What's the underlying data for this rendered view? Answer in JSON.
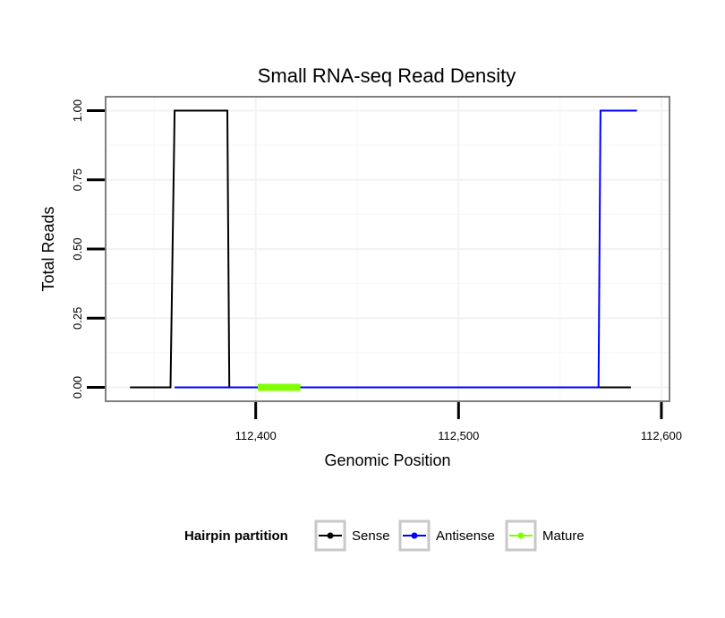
{
  "chart_data": {
    "type": "line",
    "title": "Small RNA-seq Read Density",
    "xlabel": "Genomic Position",
    "ylabel": "Total Reads",
    "xlim": [
      112326,
      112604
    ],
    "ylim": [
      -0.05,
      1.05
    ],
    "x_ticks": [
      112400,
      112500,
      112600
    ],
    "x_tick_labels": [
      "112,400",
      "112,500",
      "112,600"
    ],
    "y_ticks": [
      0,
      0.25,
      0.5,
      0.75,
      1.0
    ],
    "y_tick_labels": [
      "0.00",
      "0.25",
      "0.50",
      "0.75",
      "1.00"
    ],
    "grid": true,
    "series": [
      {
        "name": "Sense",
        "color": "#000000",
        "x": [
          112338,
          112358,
          112360,
          112386,
          112387,
          112577,
          112585
        ],
        "y": [
          0,
          0,
          1,
          1,
          0,
          0,
          0
        ]
      },
      {
        "name": "Antisense",
        "color": "#0000ff",
        "x": [
          112360,
          112386,
          112387,
          112569,
          112570,
          112588
        ],
        "y": [
          0,
          0,
          0,
          0,
          1,
          1
        ]
      },
      {
        "name": "Mature",
        "color": "#7fff00",
        "x": [
          112401,
          112422
        ],
        "y": [
          0,
          0
        ]
      }
    ],
    "legend": {
      "title": "Hairpin partition",
      "position": "bottom",
      "entries": [
        "Sense",
        "Antisense",
        "Mature"
      ]
    }
  }
}
